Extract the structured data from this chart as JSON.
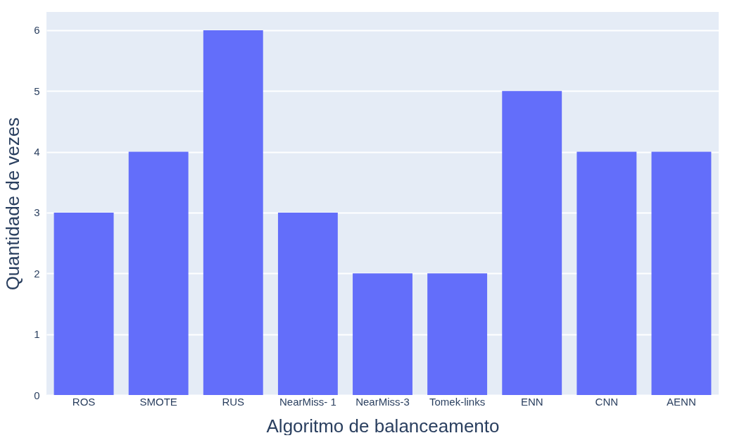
{
  "chart_data": {
    "type": "bar",
    "xlabel": "Algoritmo de balanceamento",
    "ylabel": "Quantidade de vezes",
    "categories": [
      "ROS",
      "SMOTE",
      "RUS",
      "NearMiss- 1",
      "NearMiss-3",
      "Tomek-links",
      "ENN",
      "CNN",
      "AENN"
    ],
    "values": [
      3,
      4,
      6,
      3,
      2,
      2,
      5,
      4,
      4
    ],
    "color": "#636efa",
    "ylim": [
      0,
      6.3
    ],
    "yticks": [
      0,
      1,
      2,
      3,
      4,
      5,
      6
    ],
    "grid": "y"
  }
}
